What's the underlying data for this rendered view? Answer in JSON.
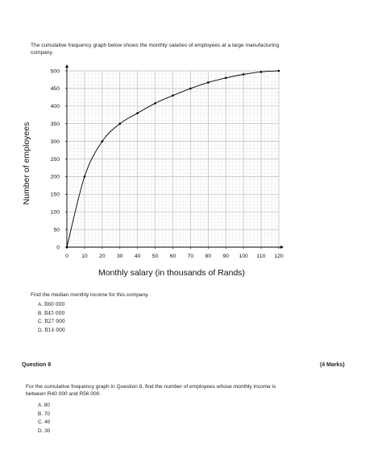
{
  "intro": "The cumulative frequency graph below shows the monthly salaries of employees at a large manufacturing company.",
  "question8": {
    "prompt": "Find the median monthly income for this company.",
    "options": [
      {
        "letter": "A.",
        "value": "R60 000"
      },
      {
        "letter": "B.",
        "value": "R45 000"
      },
      {
        "letter": "C.",
        "value": "R27 000"
      },
      {
        "letter": "D.",
        "value": "R14 000"
      }
    ]
  },
  "question9": {
    "heading": "Question 9",
    "marks": "(4 Marks)",
    "prompt": "For the cumulative frequency graph in Question 8, find the number of employees whose monthly income is between R40 000 and R56 000.",
    "options": [
      {
        "letter": "A.",
        "value": "80"
      },
      {
        "letter": "B.",
        "value": "70"
      },
      {
        "letter": "C.",
        "value": "40"
      },
      {
        "letter": "D.",
        "value": "30"
      }
    ]
  },
  "chart_data": {
    "type": "line",
    "title": "",
    "xlabel": "Monthly salary (in thousands of Rands)",
    "ylabel": "Number of employees",
    "xlim": [
      0,
      120
    ],
    "ylim": [
      0,
      500
    ],
    "x_ticks": [
      0,
      10,
      20,
      30,
      40,
      50,
      60,
      70,
      80,
      90,
      100,
      110,
      120
    ],
    "y_ticks": [
      0,
      50,
      100,
      150,
      200,
      250,
      300,
      350,
      400,
      450,
      500
    ],
    "grid": true,
    "series": [
      {
        "x": [
          0,
          10,
          20,
          30,
          40,
          50,
          60,
          70,
          80,
          90,
          100,
          110,
          120
        ],
        "y": [
          0,
          200,
          300,
          350,
          380,
          408,
          430,
          450,
          467,
          480,
          490,
          497,
          500
        ],
        "color": "#000000"
      }
    ]
  }
}
